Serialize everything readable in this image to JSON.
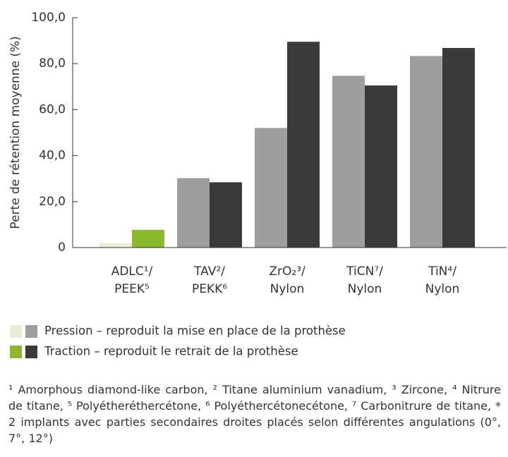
{
  "chart_data": {
    "type": "bar",
    "y_label": "Perte de rétention moyenne (%)",
    "categories": [
      [
        "ADLC¹/",
        "PEEK⁵"
      ],
      [
        "TAV²/",
        "PEKK⁶"
      ],
      [
        "ZrO₂³/",
        "Nylon"
      ],
      [
        "TiCN⁷/",
        "Nylon"
      ],
      [
        "TiN⁴/",
        "Nylon"
      ]
    ],
    "series": [
      {
        "name": "Pression – reproduit la mise en place de la prothèse",
        "colors": [
          "#e8ecd4",
          "#9e9e9e",
          "#9e9e9e",
          "#9e9e9e",
          "#9e9e9e"
        ],
        "values": [
          2,
          30.2,
          52,
          74.7,
          83.3
        ]
      },
      {
        "name": "Traction – reproduit le retrait de la prothèse",
        "colors": [
          "#8cb82c",
          "#3a3a3c",
          "#3a3a3c",
          "#3a3a3c",
          "#3a3a3c"
        ],
        "values": [
          7.7,
          28.4,
          89.5,
          70.5,
          86.8
        ]
      }
    ],
    "ylim": [
      0,
      100
    ],
    "yticks": [
      0,
      {
        "value": 20,
        "label": "20,0"
      },
      {
        "value": 40,
        "label": "40,0"
      },
      {
        "value": 60,
        "label": "60,0"
      },
      {
        "value": 80,
        "label": "80,0"
      },
      {
        "value": 100,
        "label": "100,0"
      }
    ],
    "footnote": "¹ Amorphous diamond-like carbon, ² Titane aluminium vanadium, ³ Zircone, ⁴ Nitrure de titane, ⁵ Polyétheréthercétone, ⁶ Polyéthercétonecétone, ⁷ Carbonitrure de titane, * 2 implants avec parties secondaires droites placés selon différentes angulations (0°, 7°, 12°)"
  }
}
